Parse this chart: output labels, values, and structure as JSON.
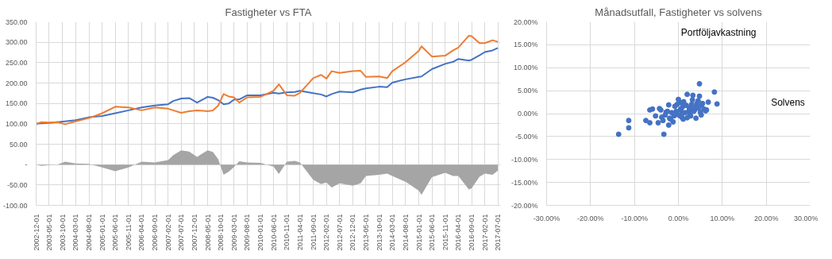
{
  "chart_data": [
    {
      "type": "line",
      "title": "Fastigheter vs FTA",
      "x": [
        "2002-12-01",
        "2003-02-01",
        "2003-05-01",
        "2003-08-01",
        "2003-11-01",
        "2004-03-01",
        "2004-08-01",
        "2005-01-01",
        "2005-06-01",
        "2005-11-01",
        "2006-04-01",
        "2006-09-01",
        "2007-02-01",
        "2007-04-01",
        "2007-07-01",
        "2007-10-01",
        "2008-01-01",
        "2008-05-01",
        "2008-07-01",
        "2008-09-01",
        "2008-11-01",
        "2009-01-01",
        "2009-03-01",
        "2009-05-01",
        "2009-08-01",
        "2010-01-01",
        "2010-06-01",
        "2010-08-01",
        "2010-11-01",
        "2011-02-01",
        "2011-04-01",
        "2011-09-01",
        "2011-12-01",
        "2012-02-01",
        "2012-04-01",
        "2012-07-01",
        "2012-12-01",
        "2013-03-01",
        "2013-05-01",
        "2013-10-01",
        "2014-01-01",
        "2014-03-01",
        "2014-08-01",
        "2015-01-01",
        "2015-02-01",
        "2015-06-01",
        "2015-11-01",
        "2016-02-01",
        "2016-04-01",
        "2016-08-01",
        "2016-09-01",
        "2016-12-01",
        "2017-02-01",
        "2017-05-01",
        "2017-07-01"
      ],
      "series": [
        {
          "type": "area",
          "color": "#a5a5a5",
          "values": [
            0,
            -3,
            -1,
            0,
            7,
            3,
            2,
            -7,
            -16,
            -7,
            7,
            5,
            11,
            23,
            35,
            32,
            19,
            35,
            31,
            13,
            -25,
            -17,
            -6,
            8,
            5,
            4,
            -5,
            -23,
            7,
            9,
            5,
            -37,
            -48,
            -44,
            -56,
            -46,
            -52,
            -46,
            -28,
            -25,
            -22,
            -28,
            -42,
            -64,
            -74,
            -31,
            -20,
            -28,
            -28,
            -61,
            -58,
            -30,
            -22,
            -25,
            -15
          ]
        },
        {
          "color": "#4472c4",
          "values": [
            100,
            101,
            102,
            104,
            106,
            109,
            116,
            119,
            126,
            133,
            140,
            145,
            148,
            156,
            162,
            163,
            152,
            166,
            164,
            158,
            148,
            150,
            159,
            160,
            170,
            170,
            176,
            174,
            177,
            178,
            181,
            175,
            172,
            167,
            173,
            179,
            177,
            184,
            187,
            191,
            190,
            201,
            209,
            215,
            216,
            234,
            247,
            252,
            259,
            255,
            257,
            268,
            276,
            280,
            286
          ]
        },
        {
          "color": "#ed7d31",
          "values": [
            100,
            104,
            103,
            104,
            99,
            106,
            114,
            126,
            142,
            140,
            133,
            140,
            137,
            133,
            127,
            131,
            133,
            131,
            133,
            145,
            173,
            167,
            165,
            152,
            165,
            166,
            181,
            197,
            170,
            169,
            176,
            212,
            220,
            211,
            229,
            225,
            229,
            230,
            215,
            216,
            212,
            229,
            251,
            279,
            290,
            265,
            267,
            280,
            287,
            316,
            315,
            298,
            298,
            305,
            301
          ]
        }
      ],
      "xlim": [
        "2002-12-01",
        "2017-08-01"
      ],
      "xticks": [
        "2002-12-01",
        "2003-05-01",
        "2003-10-01",
        "2004-03-01",
        "2004-08-01",
        "2005-01-01",
        "2005-06-01",
        "2005-11-01",
        "2006-04-01",
        "2006-09-01",
        "2007-02-01",
        "2007-07-01",
        "2007-12-01",
        "2008-05-01",
        "2008-10-01",
        "2009-03-01",
        "2009-08-01",
        "2010-01-01",
        "2010-06-01",
        "2010-11-01",
        "2011-04-01",
        "2011-09-01",
        "2012-02-01",
        "2012-07-01",
        "2012-12-01",
        "2013-05-01",
        "2013-10-01",
        "2014-03-01",
        "2014-08-01",
        "2015-01-01",
        "2015-06-01",
        "2015-11-01",
        "2016-04-01",
        "2016-09-01",
        "2017-02-01",
        "2017-07-01"
      ],
      "ylim": [
        -100,
        350
      ],
      "yticks": [
        {
          "value": -100,
          "label": "-100.00"
        },
        {
          "value": -50,
          "label": "-50.00"
        },
        {
          "value": 0,
          "label": "-"
        },
        {
          "value": 50,
          "label": "50.00"
        },
        {
          "value": 100,
          "label": "100.00"
        },
        {
          "value": 150,
          "label": "150.00"
        },
        {
          "value": 200,
          "label": "200.00"
        },
        {
          "value": 250,
          "label": "250.00"
        },
        {
          "value": 300,
          "label": "300.00"
        },
        {
          "value": 350,
          "label": "350.00"
        }
      ],
      "grid": true,
      "marker": "none",
      "line_style": "solid"
    },
    {
      "type": "scatter",
      "title": "Månadsutfall, Fastigheter vs solvens",
      "xlabel": "Solvens",
      "ylabel": "Portföljavkastning",
      "color": "#4472c4",
      "marker": "circle",
      "grid": true,
      "x": [
        -13.6,
        -11.3,
        -11.3,
        -3.3,
        -2.2,
        4.8,
        8.2,
        8.8,
        6.8,
        2.0,
        3.3,
        4.8,
        0.0,
        -6.5,
        -5.9,
        -7.4,
        -6.5,
        -4.6,
        -4.3,
        5.3,
        6.4,
        4.0,
        -0.5,
        0.5,
        1.0,
        1.5,
        2.5,
        3.0,
        3.5,
        4.0,
        4.5,
        5.0,
        5.5,
        -1.0,
        -1.5,
        -2.0,
        -2.5,
        -3.0,
        -3.5,
        -4.0,
        0.3,
        0.8,
        1.2,
        1.8,
        2.8,
        3.8,
        -0.8,
        -1.8,
        -2.8,
        -0.2,
        0.6,
        2.4,
        3.2,
        4.2,
        5.8,
        6.2,
        -0.3,
        1.1,
        2.0,
        3.0,
        -1.2,
        -2.2,
        0.4,
        4.6,
        5.2,
        -3.8,
        -5.2,
        0.9,
        2.6
      ],
      "values": [
        -4.5,
        -3.1,
        -1.5,
        -4.5,
        -2.5,
        6.5,
        4.7,
        2.1,
        2.5,
        4.2,
        4.0,
        3.8,
        3.1,
        0.8,
        1.0,
        -1.5,
        -2.0,
        -2.0,
        1.1,
        1.9,
        0.8,
        -1.0,
        0.5,
        1.0,
        1.5,
        0.2,
        1.2,
        2.0,
        0.5,
        1.5,
        2.8,
        0.3,
        2.2,
        -0.5,
        0.2,
        -1.0,
        0.5,
        -0.3,
        -1.5,
        0.8,
        2.4,
        -0.8,
        2.6,
        1.8,
        -0.5,
        0.9,
        1.6,
        -1.2,
        0.3,
        -0.2,
        0.7,
        0.6,
        3.0,
        2.2,
        1.0,
        0.6,
        2.0,
        -1.2,
        -0.9,
        1.0,
        -1.8,
        1.9,
        -0.5,
        1.3,
        -0.3,
        -0.8,
        -0.5,
        0.2,
        -0.2
      ],
      "xlim": [
        -30,
        30
      ],
      "ylim": [
        -20,
        20
      ],
      "xticks": [
        {
          "value": -30,
          "label": "-30.00%"
        },
        {
          "value": -20,
          "label": "-20.00%"
        },
        {
          "value": -10,
          "label": "-10.00%"
        },
        {
          "value": 0,
          "label": "0.00%"
        },
        {
          "value": 10,
          "label": "10.00%"
        },
        {
          "value": 20,
          "label": "20.00%"
        },
        {
          "value": 30,
          "label": "30.00%"
        }
      ],
      "yticks": [
        {
          "value": -20,
          "label": "-20.00%"
        },
        {
          "value": -15,
          "label": "-15.00%"
        },
        {
          "value": -10,
          "label": "-10.00%"
        },
        {
          "value": -5,
          "label": "-5.00%"
        },
        {
          "value": 0,
          "label": "0.00%"
        },
        {
          "value": 5,
          "label": "5.00%"
        },
        {
          "value": 10,
          "label": "10.00%"
        },
        {
          "value": 15,
          "label": "15.00%"
        },
        {
          "value": 20,
          "label": "20.00%"
        }
      ]
    }
  ]
}
